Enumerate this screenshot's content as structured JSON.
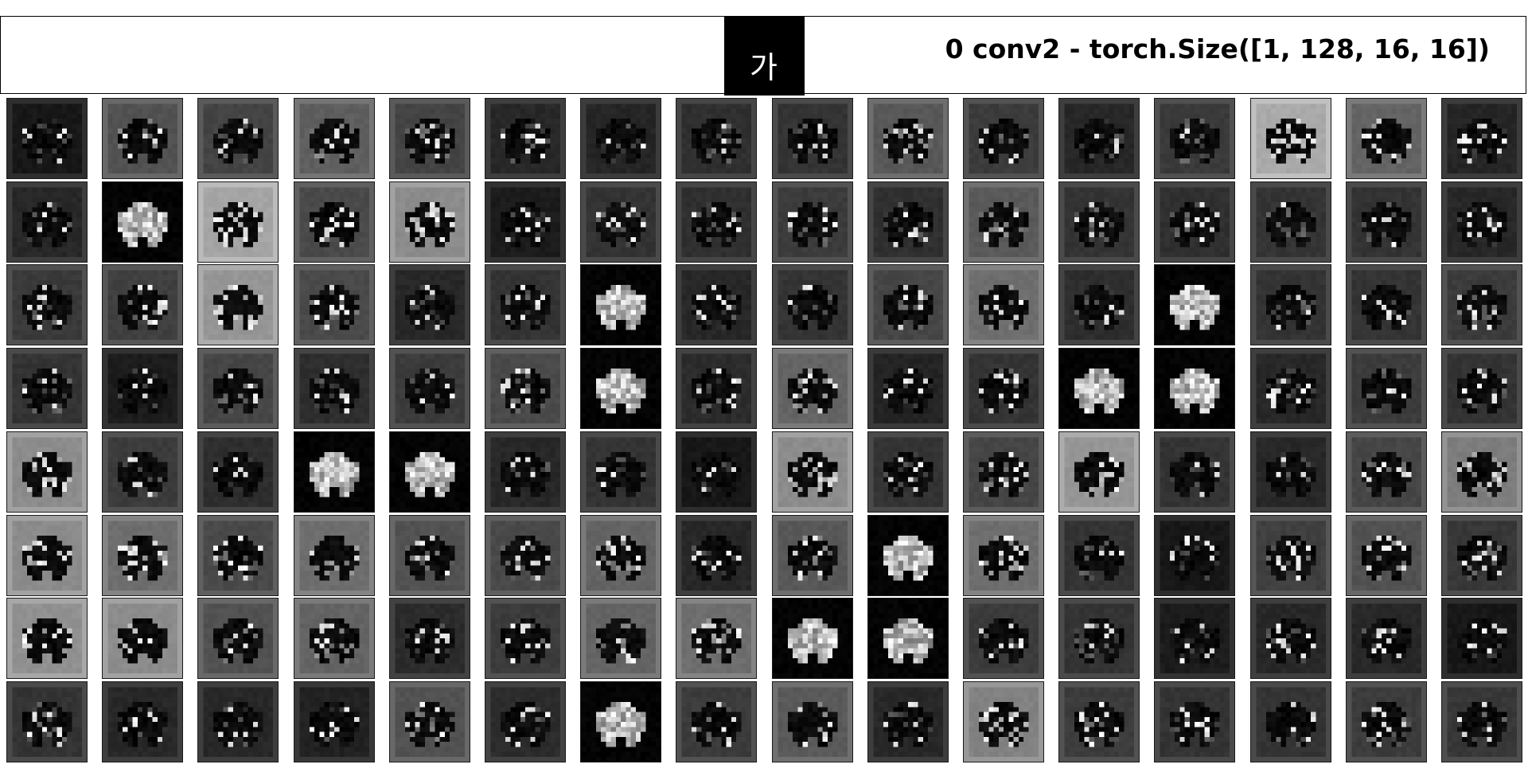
{
  "input_char": "가",
  "title": "0 conv2 - torch.Size([1, 128, 16, 16])",
  "grid": {
    "rows": 8,
    "cols": 16,
    "channels": 128
  },
  "background_levels": [
    [
      24,
      82,
      68,
      95,
      68,
      40,
      38,
      48,
      52,
      88,
      60,
      40,
      58,
      170,
      100,
      38
    ],
    [
      40,
      4,
      165,
      74,
      140,
      28,
      52,
      48,
      60,
      48,
      90,
      52,
      48,
      52,
      52,
      40
    ],
    [
      58,
      64,
      150,
      74,
      40,
      52,
      4,
      40,
      52,
      70,
      110,
      46,
      4,
      52,
      52,
      60
    ],
    [
      52,
      28,
      70,
      46,
      60,
      74,
      4,
      44,
      100,
      36,
      52,
      4,
      4,
      40,
      60,
      52
    ],
    [
      140,
      60,
      46,
      4,
      4,
      40,
      52,
      24,
      140,
      52,
      70,
      150,
      52,
      40,
      70,
      125
    ],
    [
      140,
      110,
      74,
      110,
      82,
      74,
      100,
      40,
      88,
      4,
      110,
      52,
      24,
      64,
      82,
      56
    ],
    [
      145,
      140,
      82,
      100,
      44,
      60,
      100,
      110,
      4,
      4,
      60,
      52,
      28,
      40,
      40,
      24
    ],
    [
      52,
      40,
      40,
      34,
      82,
      44,
      4,
      60,
      90,
      40,
      130,
      60,
      52,
      52,
      60,
      56
    ]
  ]
}
